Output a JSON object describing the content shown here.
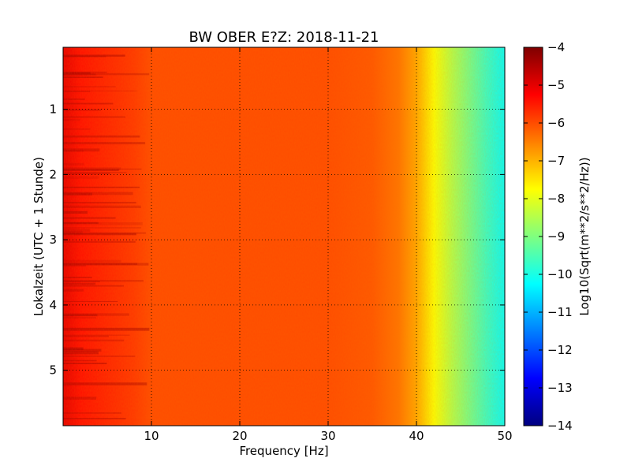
{
  "chart_data": {
    "type": "heatmap",
    "title": "BW OBER E?Z: 2018-11-21",
    "xlabel": "Frequency [Hz]",
    "ylabel": "Lokalzeit (UTC + 1 Stunde)",
    "xlim": [
      0,
      50
    ],
    "ylim": [
      5.85,
      0.05
    ],
    "x_ticks": [
      10,
      20,
      30,
      40,
      50
    ],
    "y_ticks": [
      1,
      2,
      3,
      4,
      5
    ],
    "grid": true,
    "colorbar": {
      "label": "Log10(Sqrt(m**2/s**2/Hz))",
      "range": [
        -14,
        -4
      ],
      "ticks": [
        -4,
        -5,
        -6,
        -7,
        -8,
        -9,
        -10,
        -11,
        -12,
        -13,
        -14
      ],
      "colormap": "jet"
    },
    "spectrum_profile": {
      "frequency_hz": [
        0,
        2,
        5,
        8,
        10,
        20,
        30,
        35,
        38,
        40,
        42,
        44,
        46,
        48,
        50
      ],
      "log10_amplitude": [
        -5.0,
        -5.4,
        -5.6,
        -5.8,
        -6.0,
        -6.0,
        -6.0,
        -6.1,
        -6.4,
        -6.9,
        -7.8,
        -8.5,
        -9.1,
        -9.7,
        -10.2
      ]
    }
  }
}
